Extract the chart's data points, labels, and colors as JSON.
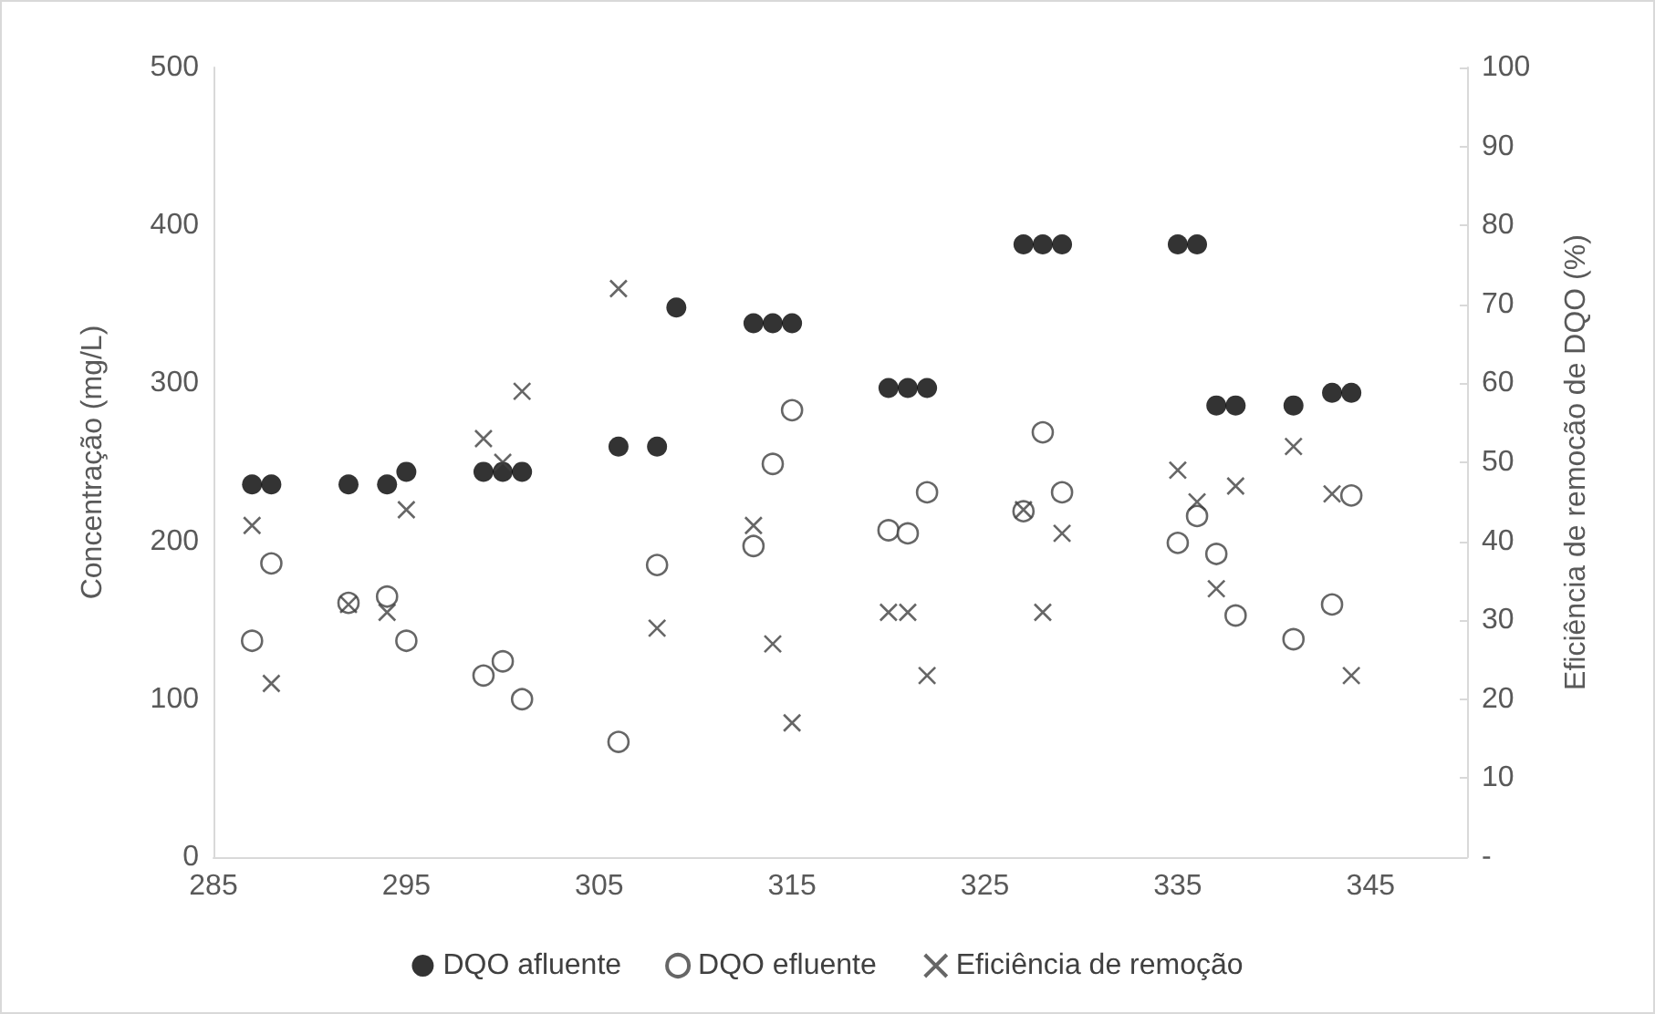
{
  "chart_data": {
    "type": "scatter",
    "ylabel": "Concentração (mg/L)",
    "y2label": "Eficiência de remocão de DQO (%)",
    "xlim": [
      285,
      350
    ],
    "xticks": [
      285,
      295,
      305,
      315,
      325,
      335,
      345
    ],
    "ylim": [
      0,
      500
    ],
    "yticks": [
      0,
      100,
      200,
      300,
      400,
      500
    ],
    "y2lim": [
      0,
      100
    ],
    "y2ticks": [
      {
        "value": 0,
        "label": "-"
      },
      10,
      20,
      30,
      40,
      50,
      60,
      70,
      80,
      90,
      100
    ],
    "grid": false,
    "legend": "bottom",
    "series": [
      {
        "name": "DQO afluente",
        "color": "#000000",
        "marker": "circle",
        "x": [
          287,
          288,
          292,
          294,
          295,
          299,
          300,
          301,
          306,
          308,
          309,
          313,
          314,
          315,
          320,
          321,
          322,
          327,
          328,
          329,
          335,
          336,
          337,
          338,
          341,
          343,
          344
        ],
        "values": [
          236,
          236,
          236,
          236,
          244,
          244,
          244,
          244,
          260,
          260,
          348,
          338,
          338,
          338,
          297,
          297,
          297,
          388,
          388,
          388,
          388,
          388,
          286,
          286,
          286,
          294,
          294
        ]
      },
      {
        "name": "DQO efluente",
        "color": "#404040",
        "marker": "circle",
        "x": [
          288,
          287,
          292,
          294,
          295,
          299,
          300,
          301,
          306,
          308,
          315,
          314,
          313,
          320,
          321,
          322,
          327,
          328,
          329,
          335,
          336,
          337,
          338,
          341,
          343,
          344
        ],
        "values": [
          186,
          137,
          161,
          165,
          137,
          115,
          124,
          100,
          73,
          185,
          283,
          249,
          197,
          207,
          205,
          231,
          219,
          269,
          231,
          199,
          216,
          192,
          153,
          138,
          160,
          229
        ]
      },
      {
        "name": "Eficiência de remoção",
        "color": "#404040",
        "marker": "cross",
        "axis": "y2",
        "x": [
          287,
          288,
          292,
          294,
          295,
          299,
          300,
          301,
          306,
          308,
          313,
          314,
          315,
          320,
          321,
          322,
          327,
          328,
          329,
          335,
          336,
          337,
          338,
          341,
          343,
          344
        ],
        "values": [
          42,
          22,
          32,
          31,
          44,
          53,
          50,
          59,
          72,
          29,
          42,
          27,
          17,
          31,
          31,
          23,
          44,
          31,
          41,
          49,
          45,
          34,
          47,
          52,
          46,
          23
        ]
      }
    ]
  }
}
